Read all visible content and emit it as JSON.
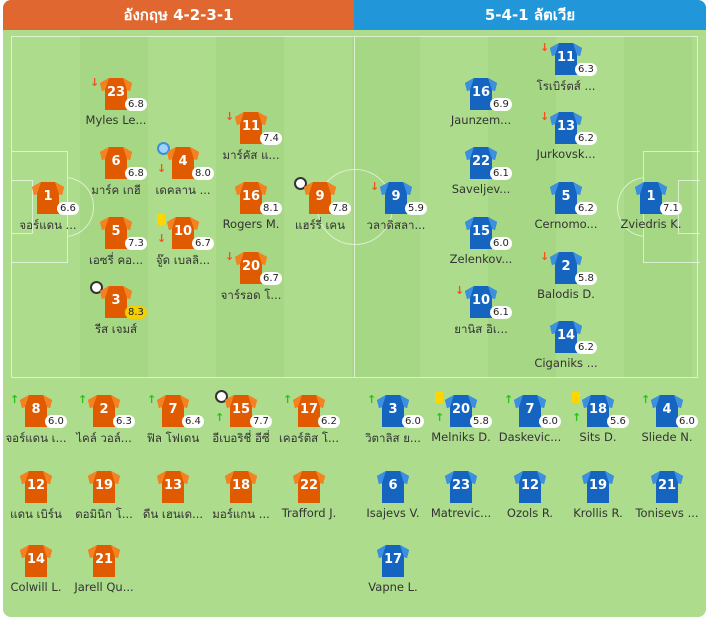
{
  "header": {
    "home": "อังกฤษ 4-2-3-1",
    "away": "5-4-1 ลัตเวีย"
  },
  "colors": {
    "home": "#e05a00",
    "home_header": "#e0672f",
    "away": "#1565c0",
    "away_header": "#2196d9"
  },
  "home_lineup": [
    {
      "num": "1",
      "name": "จอร์แดน ...",
      "rating": "6.6",
      "events": []
    },
    {
      "num": "23",
      "name": "Myles Le...",
      "rating": "6.8",
      "events": [
        "sub-out"
      ]
    },
    {
      "num": "6",
      "name": "มาร์ค เกฮี",
      "rating": "6.8",
      "events": []
    },
    {
      "num": "5",
      "name": "เอซรี่ คอ...",
      "rating": "7.3",
      "events": []
    },
    {
      "num": "3",
      "name": "รีส เจมส์",
      "rating": "8.3",
      "best": true,
      "events": [
        "goal"
      ]
    },
    {
      "num": "4",
      "name": "เดคลาน ...",
      "rating": "8.0",
      "events": [
        "captain",
        "sub-out"
      ]
    },
    {
      "num": "10",
      "name": "จู๊ด เบลลิ...",
      "rating": "6.7",
      "events": [
        "yellow-card",
        "sub-out"
      ]
    },
    {
      "num": "11",
      "name": "มาร์คัส แ...",
      "rating": "7.4",
      "events": [
        "sub-out"
      ]
    },
    {
      "num": "16",
      "name": "Rogers M.",
      "rating": "8.1",
      "events": []
    },
    {
      "num": "20",
      "name": "จาร์รอด โ...",
      "rating": "6.7",
      "events": [
        "sub-out"
      ]
    },
    {
      "num": "9",
      "name": "แฮร์รี่ เคน",
      "rating": "7.8",
      "events": [
        "goal"
      ]
    }
  ],
  "away_lineup": [
    {
      "num": "9",
      "name": "วลาดิสลา...",
      "rating": "5.9",
      "events": [
        "sub-out"
      ]
    },
    {
      "num": "16",
      "name": "Jaunzem...",
      "rating": "6.9",
      "events": []
    },
    {
      "num": "22",
      "name": "Saveljev...",
      "rating": "6.1",
      "events": []
    },
    {
      "num": "15",
      "name": "Zelenkov...",
      "rating": "6.0",
      "events": []
    },
    {
      "num": "10",
      "name": "ยานิส อิเ...",
      "rating": "6.1",
      "events": [
        "sub-out"
      ]
    },
    {
      "num": "11",
      "name": "โรเบิร์ตส์ ...",
      "rating": "6.3",
      "events": [
        "sub-out"
      ]
    },
    {
      "num": "13",
      "name": "Jurkovsk...",
      "rating": "6.2",
      "events": [
        "sub-out"
      ]
    },
    {
      "num": "5",
      "name": "Cernomo...",
      "rating": "6.2",
      "events": []
    },
    {
      "num": "2",
      "name": "Balodis D.",
      "rating": "5.8",
      "events": [
        "sub-out"
      ]
    },
    {
      "num": "14",
      "name": "Ciganiks ...",
      "rating": "6.2",
      "events": []
    },
    {
      "num": "1",
      "name": "Zviedris K.",
      "rating": "7.1",
      "events": []
    }
  ],
  "home_subs": [
    {
      "num": "8",
      "name": "จอร์แดน เ...",
      "rating": "6.0",
      "events": [
        "sub-in"
      ]
    },
    {
      "num": "2",
      "name": "ไคล์ วอล์...",
      "rating": "6.3",
      "events": [
        "sub-in"
      ]
    },
    {
      "num": "7",
      "name": "ฟิล โฟเดน",
      "rating": "6.4",
      "events": [
        "sub-in"
      ]
    },
    {
      "num": "15",
      "name": "อีเบอริชี่ อีซี่",
      "rating": "7.7",
      "events": [
        "goal",
        "sub-in"
      ]
    },
    {
      "num": "17",
      "name": "เคอร์ติส โ...",
      "rating": "6.2",
      "events": [
        "sub-in"
      ]
    },
    {
      "num": "12",
      "name": "แดน เบิร์น"
    },
    {
      "num": "19",
      "name": "ดอมินิก โ..."
    },
    {
      "num": "13",
      "name": "ดีน เฮนเด..."
    },
    {
      "num": "18",
      "name": "มอร์แกน ..."
    },
    {
      "num": "22",
      "name": "Trafford J."
    },
    {
      "num": "14",
      "name": "Colwill L."
    },
    {
      "num": "21",
      "name": "Jarell Qu..."
    }
  ],
  "away_subs": [
    {
      "num": "3",
      "name": "วิตาลิส ย...",
      "rating": "6.0",
      "events": [
        "sub-in"
      ]
    },
    {
      "num": "20",
      "name": "Melniks D.",
      "rating": "5.8",
      "events": [
        "yellow-card",
        "sub-in"
      ]
    },
    {
      "num": "7",
      "name": "Daskevic...",
      "rating": "6.0",
      "events": [
        "sub-in"
      ]
    },
    {
      "num": "18",
      "name": "Sits D.",
      "rating": "5.6",
      "events": [
        "yellow-card",
        "sub-in"
      ]
    },
    {
      "num": "4",
      "name": "Sliede N.",
      "rating": "6.0",
      "events": [
        "sub-in"
      ]
    },
    {
      "num": "6",
      "name": "Isajevs V."
    },
    {
      "num": "23",
      "name": "Matrevic..."
    },
    {
      "num": "12",
      "name": "Ozols R."
    },
    {
      "num": "19",
      "name": "Krollis R."
    },
    {
      "num": "21",
      "name": "Tonisevs ..."
    },
    {
      "num": "17",
      "name": "Vapne L."
    }
  ]
}
